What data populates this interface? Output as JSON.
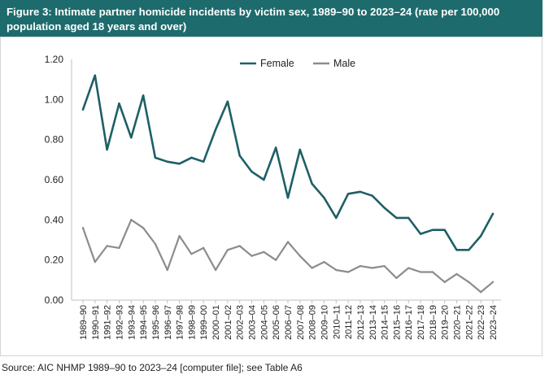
{
  "figure": {
    "title": "Figure 3: Intimate partner homicide incidents by victim sex, 1989–90 to 2023–24 (rate per 100,000 population aged 18 years and over)",
    "source": "Source: AIC NHMP 1989–90 to 2023–24 [computer file]; see Table A6"
  },
  "chart_data": {
    "type": "line",
    "title": "Figure 3: Intimate partner homicide incidents by victim sex, 1989–90 to 2023–24 (rate per 100,000 population aged 18 years and over)",
    "xlabel": "",
    "ylabel": "",
    "ylim": [
      0,
      1.2
    ],
    "yticks": [
      "0.00",
      "0.20",
      "0.40",
      "0.60",
      "0.80",
      "1.00",
      "1.20"
    ],
    "grid": false,
    "legend_position": "top-center",
    "categories": [
      "1989–90",
      "1990–91",
      "1991–92",
      "1992–93",
      "1993–94",
      "1994–95",
      "1995–96",
      "1996–97",
      "1997–98",
      "1998–99",
      "1999–00",
      "2000–01",
      "2001–02",
      "2002–03",
      "2003–04",
      "2004–05",
      "2005–06",
      "2006–07",
      "2007–08",
      "2008–09",
      "2009–10",
      "2010–11",
      "2011–12",
      "2012–13",
      "2013–14",
      "2014–15",
      "2015–16",
      "2016–17",
      "2017–18",
      "2018–19",
      "2019–20",
      "2020–21",
      "2021–22",
      "2022–23",
      "2023–24"
    ],
    "series": [
      {
        "name": "Female",
        "color": "#1e5f66",
        "values": [
          0.95,
          1.12,
          0.75,
          0.98,
          0.81,
          1.02,
          0.71,
          0.69,
          0.68,
          0.71,
          0.69,
          0.85,
          0.99,
          0.72,
          0.64,
          0.6,
          0.76,
          0.51,
          0.75,
          0.58,
          0.51,
          0.41,
          0.53,
          0.54,
          0.52,
          0.46,
          0.41,
          0.41,
          0.33,
          0.35,
          0.35,
          0.25,
          0.25,
          0.32,
          0.43
        ]
      },
      {
        "name": "Male",
        "color": "#8c8c8c",
        "values": [
          0.36,
          0.19,
          0.27,
          0.26,
          0.4,
          0.36,
          0.28,
          0.15,
          0.32,
          0.23,
          0.26,
          0.15,
          0.25,
          0.27,
          0.22,
          0.24,
          0.2,
          0.29,
          0.22,
          0.16,
          0.19,
          0.15,
          0.14,
          0.17,
          0.16,
          0.17,
          0.11,
          0.16,
          0.14,
          0.14,
          0.09,
          0.13,
          0.09,
          0.04,
          0.09
        ]
      }
    ]
  }
}
